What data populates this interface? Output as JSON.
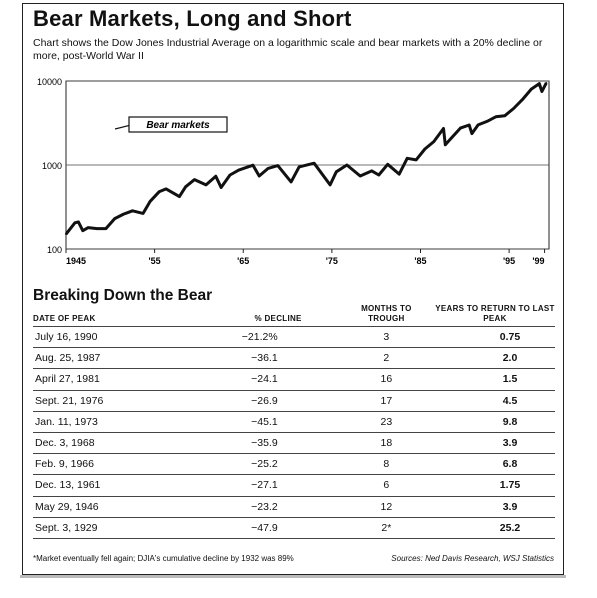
{
  "title": "Bear Markets, Long and Short",
  "subtitle": "Chart shows the Dow Jones Industrial Average on a logarithmic scale and bear markets with a 20% decline or more, post-World War II",
  "chart_data": {
    "type": "line",
    "title": "",
    "xlabel": "",
    "ylabel": "",
    "y_scale": "log",
    "ylim": [
      100,
      10000
    ],
    "y_ticks": [
      100,
      1000,
      10000
    ],
    "y_tick_labels": [
      "100",
      "1000",
      "10000"
    ],
    "xlim": [
      1945,
      1999.5
    ],
    "x_ticks": [
      1945,
      1955,
      1965,
      1975,
      1985,
      1995,
      1999
    ],
    "x_tick_labels": [
      "1945",
      "'55",
      "'65",
      "'75",
      "'85",
      "'95",
      "'99"
    ],
    "grid": "horizontal at each decade",
    "annotation": "Bear markets",
    "series": [
      {
        "x": [
          1945,
          1946,
          1946.4,
          1946.9,
          1947.5,
          1948.5,
          1949.5,
          1950.5,
          1951.5,
          1952.5,
          1953.7,
          1954.5,
          1955.5,
          1956.3,
          1957.8,
          1958.5,
          1959.5,
          1960.8,
          1961.9,
          1962.5,
          1963.5,
          1964.5,
          1966.1,
          1966.8,
          1967.8,
          1968.9,
          1970.4,
          1971.3,
          1973.0,
          1974.8,
          1975.5,
          1976.7,
          1978.2,
          1979.5,
          1980.3,
          1981.3,
          1982.6,
          1983.5,
          1984.5,
          1985.5,
          1986.5,
          1987.6,
          1987.8,
          1988.5,
          1989.5,
          1990.5,
          1990.8,
          1991.5,
          1992.5,
          1993.5,
          1994.5,
          1995.5,
          1996.5,
          1997.5,
          1998.4,
          1998.7,
          1999.2
        ],
        "y": [
          150,
          205,
          210,
          165,
          180,
          175,
          175,
          230,
          260,
          285,
          265,
          370,
          480,
          520,
          420,
          550,
          670,
          580,
          735,
          540,
          760,
          870,
          995,
          740,
          910,
          985,
          630,
          950,
          1050,
          580,
          830,
          1000,
          740,
          850,
          760,
          1020,
          780,
          1200,
          1150,
          1550,
          1900,
          2720,
          1740,
          2100,
          2750,
          2990,
          2365,
          3000,
          3300,
          3750,
          3850,
          4700,
          6000,
          8000,
          9300,
          7500,
          9500
        ]
      }
    ]
  },
  "table": {
    "title": "Breaking Down the Bear",
    "headers": [
      "DATE OF PEAK",
      "% DECLINE",
      "MONTHS TO TROUGH",
      "YEARS TO RETURN TO LAST PEAK"
    ],
    "rows": [
      [
        "July 16, 1990",
        "−21.2%",
        "3",
        "0.75"
      ],
      [
        "Aug. 25, 1987",
        "−36.1",
        "2",
        "2.0"
      ],
      [
        "April 27, 1981",
        "−24.1",
        "16",
        "1.5"
      ],
      [
        "Sept. 21, 1976",
        "−26.9",
        "17",
        "4.5"
      ],
      [
        "Jan. 11, 1973",
        "−45.1",
        "23",
        "9.8"
      ],
      [
        "Dec. 3, 1968",
        "−35.9",
        "18",
        "3.9"
      ],
      [
        "Feb. 9, 1966",
        "−25.2",
        "8",
        "6.8"
      ],
      [
        "Dec. 13, 1961",
        "−27.1",
        "6",
        "1.75"
      ],
      [
        "May 29, 1946",
        "−23.2",
        "12",
        "3.9"
      ],
      [
        "Sept. 3, 1929",
        "−47.9",
        "2*",
        "25.2"
      ]
    ]
  },
  "footnote": "*Market eventually fell again; DJIA's cumulative decline by 1932 was 89%",
  "sources": "Sources: Ned Davis Research, WSJ Statistics"
}
